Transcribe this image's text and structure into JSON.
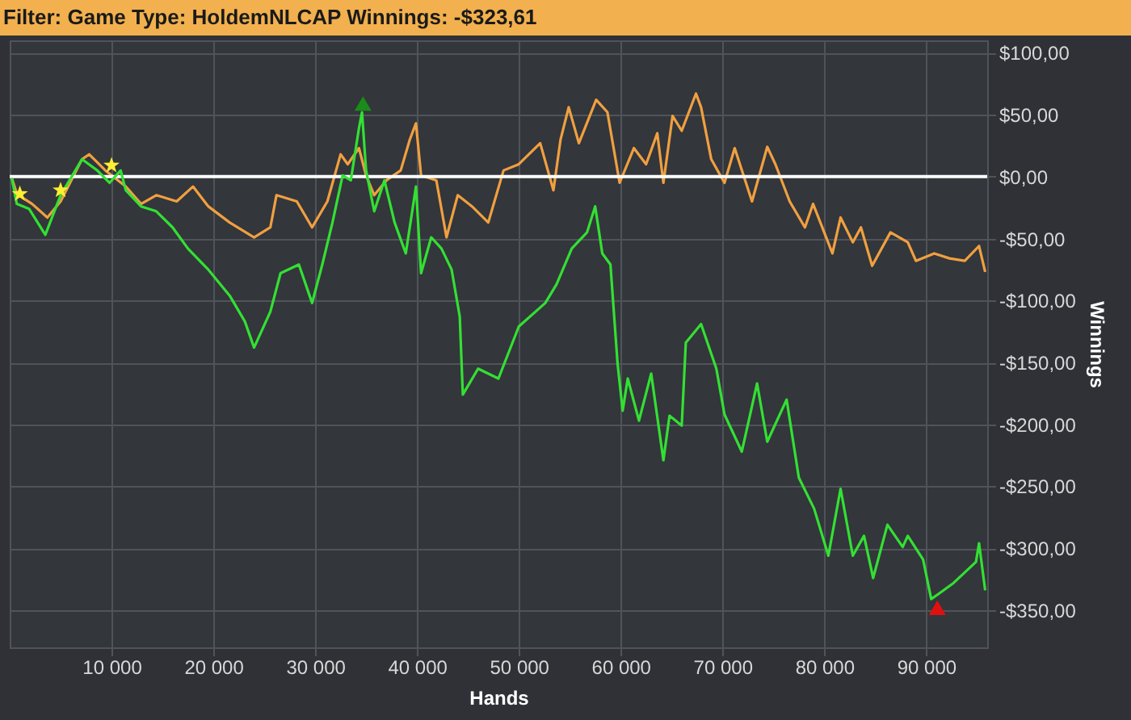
{
  "chart_data": {
    "type": "line",
    "title": "Filter: Game Type: HoldemNLCAP Winnings: -$323,61",
    "xlabel": "Hands",
    "ylabel": "Winnings",
    "xlim": [
      0,
      96000
    ],
    "ylim": [
      -380,
      110
    ],
    "xticks": [
      {
        "value": 10000,
        "label": "10 000"
      },
      {
        "value": 20000,
        "label": "20 000"
      },
      {
        "value": 30000,
        "label": "30 000"
      },
      {
        "value": 40000,
        "label": "40 000"
      },
      {
        "value": 50000,
        "label": "50 000"
      },
      {
        "value": 60000,
        "label": "60 000"
      },
      {
        "value": 70000,
        "label": "70 000"
      },
      {
        "value": 80000,
        "label": "80 000"
      },
      {
        "value": 90000,
        "label": "90 000"
      }
    ],
    "yticks": [
      {
        "value": -350,
        "label": "-$350,00"
      },
      {
        "value": -300,
        "label": "-$300,00"
      },
      {
        "value": -250,
        "label": "-$250,00"
      },
      {
        "value": -200,
        "label": "-$200,00"
      },
      {
        "value": -150,
        "label": "-$150,00"
      },
      {
        "value": -100,
        "label": "-$100,00"
      },
      {
        "value": -50,
        "label": "-$50,00"
      },
      {
        "value": 0,
        "label": "$0,00"
      },
      {
        "value": 50,
        "label": "$50,00"
      },
      {
        "value": 100,
        "label": "$100,00"
      }
    ],
    "grid": true,
    "line_style": "solid",
    "ref_lines": [
      {
        "axis": "y",
        "value": 0,
        "color": "#ffffff"
      }
    ],
    "series": [
      {
        "color": "#f0a040",
        "marker": "none",
        "x": [
          200,
          700,
          2200,
          3700,
          5000,
          7100,
          7800,
          9400,
          11400,
          12900,
          14400,
          16400,
          18000,
          19500,
          21600,
          24000,
          25600,
          26200,
          28200,
          29700,
          31200,
          32500,
          33200,
          34300,
          35000,
          35800,
          37000,
          38400,
          39300,
          39900,
          40400,
          41900,
          42900,
          44000,
          45400,
          47000,
          48500,
          50000,
          52100,
          53400,
          54100,
          54900,
          55900,
          57600,
          58700,
          59900,
          61300,
          62500,
          63600,
          64200,
          65100,
          66000,
          67400,
          67900,
          68900,
          70200,
          71200,
          72900,
          74400,
          75200,
          76600,
          78100,
          78900,
          80800,
          81600,
          82800,
          83600,
          84700,
          86500,
          88200,
          89000,
          90800,
          92300,
          93800,
          95200,
          95800
        ],
        "values": [
          -1,
          -14,
          -22,
          -33,
          -20,
          14,
          18,
          5,
          -8,
          -22,
          -15,
          -20,
          -8,
          -24,
          -37,
          -49,
          -41,
          -15,
          -20,
          -41,
          -20,
          18,
          10,
          23,
          1,
          -15,
          -3,
          5,
          30,
          43,
          1,
          -3,
          -49,
          -15,
          -24,
          -37,
          5,
          10,
          27,
          -11,
          30,
          56,
          27,
          62,
          52,
          -5,
          23,
          10,
          35,
          -5,
          49,
          37,
          67,
          56,
          14,
          -5,
          23,
          -20,
          24,
          10,
          -20,
          -41,
          -22,
          -62,
          -33,
          -53,
          -41,
          -72,
          -45,
          -53,
          -68,
          -62,
          -66,
          -68,
          -56,
          -77
        ]
      },
      {
        "color": "#33e033",
        "marker": "none",
        "x": [
          200,
          700,
          1900,
          3500,
          5000,
          7100,
          8600,
          9800,
          10900,
          11400,
          12900,
          14400,
          16000,
          17500,
          19500,
          21600,
          23100,
          24000,
          25600,
          26600,
          28400,
          29700,
          30700,
          31700,
          32700,
          33500,
          34300,
          34600,
          35000,
          35800,
          36800,
          37800,
          38900,
          39900,
          40400,
          41400,
          42400,
          43400,
          44200,
          44500,
          46000,
          48000,
          50000,
          52600,
          53700,
          55200,
          56700,
          57500,
          58200,
          59000,
          59700,
          60200,
          60700,
          61800,
          63000,
          64200,
          64800,
          66000,
          66400,
          67900,
          69400,
          70200,
          71900,
          73400,
          74400,
          76300,
          77500,
          79000,
          80400,
          81600,
          82800,
          83900,
          84800,
          86200,
          87700,
          88200,
          89700,
          90500,
          91200,
          92700,
          94900,
          95200,
          95800
        ],
        "values": [
          -1,
          -22,
          -26,
          -47,
          -15,
          14,
          5,
          -5,
          5,
          -11,
          -24,
          -28,
          -41,
          -58,
          -75,
          -96,
          -117,
          -138,
          -109,
          -78,
          -71,
          -102,
          -71,
          -37,
          1,
          -3,
          39,
          52,
          5,
          -28,
          -3,
          -37,
          -62,
          -8,
          -78,
          -49,
          -58,
          -75,
          -113,
          -176,
          -155,
          -163,
          -121,
          -102,
          -87,
          -58,
          -45,
          -24,
          -62,
          -71,
          -151,
          -189,
          -163,
          -197,
          -159,
          -229,
          -193,
          -201,
          -134,
          -119,
          -155,
          -192,
          -222,
          -167,
          -214,
          -180,
          -243,
          -268,
          -306,
          -252,
          -306,
          -290,
          -324,
          -281,
          -299,
          -290,
          -309,
          -341,
          -337,
          -328,
          -311,
          -296,
          -334
        ]
      },
      {
        "type": "scatter",
        "color": "#ffee33",
        "marker": "star",
        "x": [
          1000,
          5000,
          10000
        ],
        "values": [
          -14,
          -11,
          9
        ]
      },
      {
        "type": "scatter",
        "color": "#1a8c1a",
        "marker": "triangle",
        "x": [
          34700
        ],
        "values": [
          59
        ]
      },
      {
        "type": "scatter",
        "color": "#e01010",
        "marker": "triangle",
        "x": [
          91100
        ],
        "values": [
          -348
        ]
      }
    ]
  }
}
